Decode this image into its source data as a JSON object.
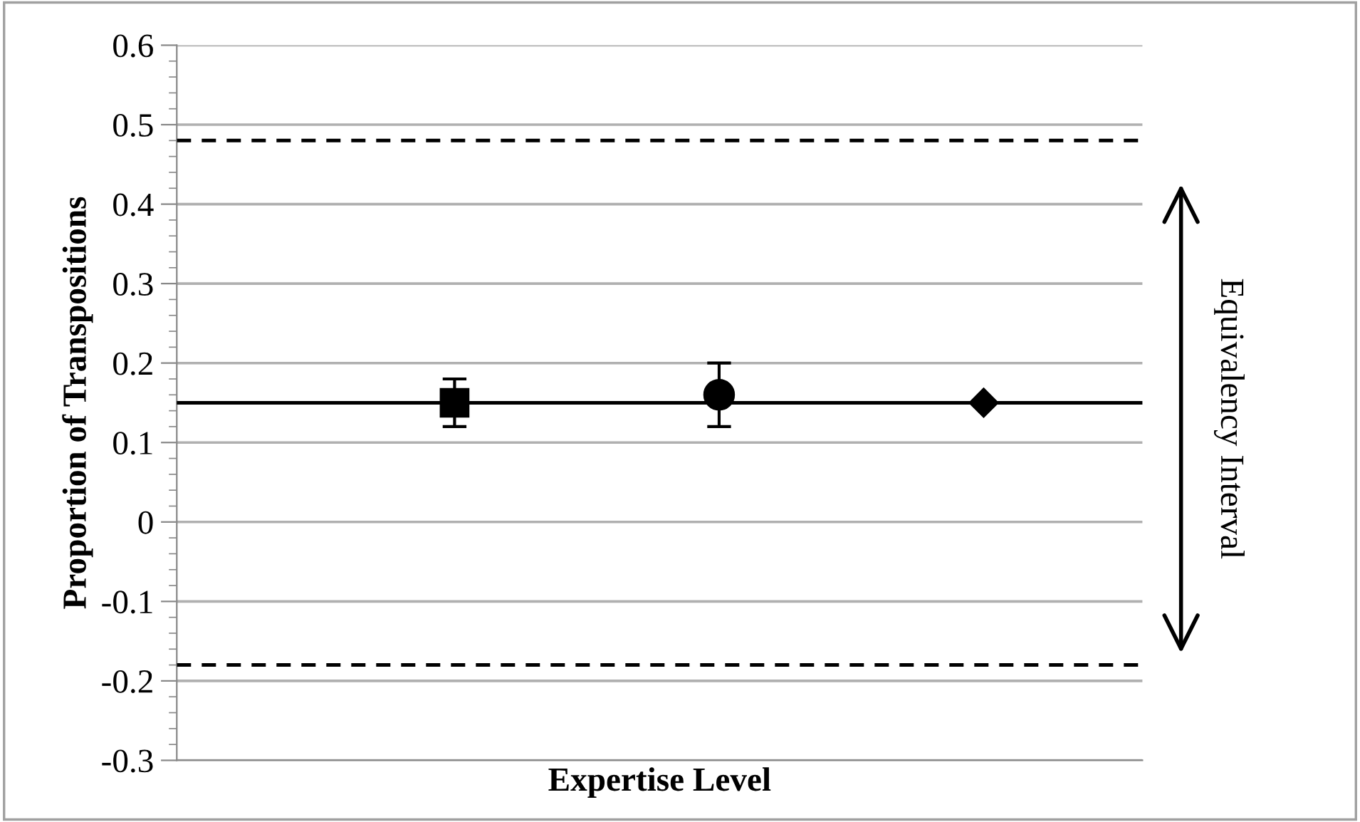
{
  "chart_data": {
    "type": "scatter",
    "xlabel": "Expertise Level",
    "ylabel": "Proportion of Transpositions",
    "categories": [
      null,
      null,
      null
    ],
    "series": [
      {
        "color": "#000000",
        "marker": "square",
        "values": [
          0.15,
          null,
          null
        ],
        "errors": [
          [
            0.12,
            0.18
          ],
          null,
          null
        ]
      },
      {
        "color": "#000000",
        "marker": "circle",
        "values": [
          null,
          0.16,
          null
        ],
        "errors": [
          null,
          [
            0.12,
            0.2
          ],
          null
        ]
      },
      {
        "color": "#000000",
        "marker": "diamond",
        "values": [
          null,
          null,
          0.15
        ]
      }
    ],
    "ylim": [
      -0.3,
      0.6
    ],
    "yticks": [
      -0.3,
      -0.2,
      -0.1,
      0,
      0.1,
      0.2,
      0.3,
      0.4,
      0.5,
      0.6
    ],
    "grid": "y",
    "legend": false,
    "ref_lines": [
      {
        "axis": "y",
        "value": 0.48,
        "color": "#000000",
        "line_style": "dashed"
      },
      {
        "axis": "y",
        "value": 0.15,
        "color": "#000000",
        "line_style": "solid"
      },
      {
        "axis": "y",
        "value": -0.18,
        "color": "#000000",
        "line_style": "dashed"
      }
    ],
    "annotations": [
      "Equivalency Interval"
    ]
  }
}
